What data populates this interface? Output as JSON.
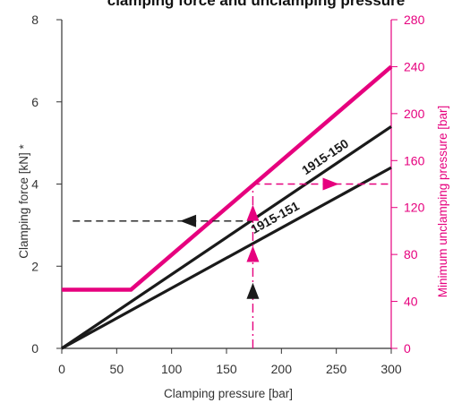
{
  "chart_data": {
    "type": "line",
    "title": "clamping force and unclamping pressure",
    "xlabel": "Clamping pressure [bar]",
    "ylabel": "Clamping force [kN] *",
    "y2label": "Minimum unclamping pressure [bar]",
    "xlim": [
      0,
      300
    ],
    "ylim": [
      0,
      8
    ],
    "y2lim": [
      0,
      280
    ],
    "x_ticks": [
      "0",
      "50",
      "100",
      "150",
      "200",
      "250",
      "300"
    ],
    "y_ticks": [
      "0",
      "2",
      "4",
      "6",
      "8"
    ],
    "y2_ticks": [
      "0",
      "40",
      "80",
      "120",
      "160",
      "200",
      "240",
      "280"
    ],
    "grid": false,
    "colors": {
      "force": "#1a1a1a",
      "pressure": "#e6007e",
      "axis": "#333333"
    },
    "series": [
      {
        "name": "1915-150",
        "axis": "left",
        "x": [
          0,
          300
        ],
        "y": [
          0,
          5.4
        ]
      },
      {
        "name": "1915-151",
        "axis": "left",
        "x": [
          0,
          300
        ],
        "y": [
          0,
          4.4
        ]
      },
      {
        "axis": "right",
        "x": [
          0,
          63,
          300
        ],
        "y": [
          50,
          50,
          240
        ]
      }
    ],
    "annotations": {
      "example_pressure": 174,
      "example_force": 3.1,
      "example_unclamping_pressure": 140,
      "example_force_x_end": 10,
      "example_unclamping_x_end": 300
    }
  }
}
